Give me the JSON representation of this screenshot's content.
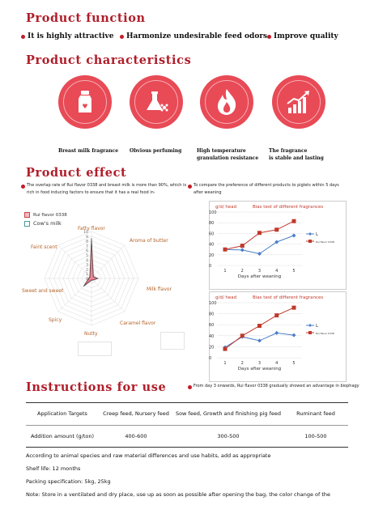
{
  "sections": {
    "function_title": "Product function",
    "characteristics_title": "Product characteristics",
    "effect_title": "Product effect",
    "instructions_title": "Instructions for use"
  },
  "functions": [
    "It is highly attractive",
    "Harmonize undesirable feed odors",
    "Improve quality"
  ],
  "characteristics": [
    {
      "icon": "milk-bottle-icon",
      "label": "Breast milk fragrance"
    },
    {
      "icon": "flask-flower-icon",
      "label": "Obvious perfuming"
    },
    {
      "icon": "flame-icon",
      "label": "High temperature\ngranulation resistance"
    },
    {
      "icon": "growth-chart-icon",
      "label": "The fragrance\nis stable and lasting"
    }
  ],
  "effect": {
    "left_text": "The overlap rate of Rui flavor 0338 and breast milk is more than 90%, which is rich in food inducing factors to ensure that it has a real food in-",
    "right_text": "To compare the preference of different products to piglets within 5 days after weaning",
    "bottom_right_text": "From day 3 onwards, Rui flavor 0338 gradually showed an advantage in biophagy"
  },
  "radar": {
    "legend": [
      "Rui flavor 0338",
      "Cow's milk"
    ],
    "axes": [
      "Fatty flavor",
      "Aroma of butter",
      "Milk flavor",
      "Caramel flavor",
      "Nutty",
      "Spicy",
      "Sweet and sweet",
      "Faint scent"
    ],
    "ticks": [
      "10",
      "9",
      "8",
      "7",
      "6",
      "5",
      "4",
      "3",
      "2",
      "1",
      "0"
    ],
    "colors": {
      "rui": "#e6899a",
      "cow": "#8fb7b9"
    }
  },
  "chart_data": [
    {
      "type": "line",
      "title": "Bias test of different fragrances",
      "ylabel": "g/d/ head",
      "xlabel": "Days after weaning",
      "x": [
        1,
        2,
        3,
        4,
        5
      ],
      "ylim": [
        0,
        100
      ],
      "yticks": [
        0,
        20,
        40,
        60,
        80,
        100
      ],
      "series": [
        {
          "name": "L",
          "color": "#4a7ec9",
          "values": [
            30,
            29,
            22,
            44,
            56
          ]
        },
        {
          "name": "Rui flavor 0338",
          "color": "#c0392b",
          "values": [
            30,
            37,
            61,
            67,
            83
          ]
        }
      ]
    },
    {
      "type": "line",
      "title": "Bias test of different fragrances",
      "ylabel": "g/d/ head",
      "xlabel": "Days after weaning",
      "x": [
        1,
        2,
        3,
        4,
        5
      ],
      "ylim": [
        0,
        100
      ],
      "yticks": [
        0,
        20,
        40,
        60,
        80,
        100
      ],
      "series": [
        {
          "name": "L",
          "color": "#4a7ec9",
          "values": [
            19,
            38,
            31,
            45,
            41
          ]
        },
        {
          "name": "Rui flavor 0338",
          "color": "#c0392b",
          "values": [
            16,
            40,
            58,
            77,
            91
          ]
        }
      ]
    }
  ],
  "table": {
    "headers": [
      "Application Targets",
      "Creep feed, Nursery feed",
      "Sow feed, Growth and finishing pig feed",
      "Ruminant feed"
    ],
    "row": [
      "Addition amount (g/ton)",
      "400-600",
      "300-500",
      "100-500"
    ]
  },
  "notes": [
    "According to animal species and raw material differences and use habits, add as appropriate",
    "Shelf life: 12 months",
    "Packing specification: 5kg, 25kg",
    "Note: Store in a ventilated and dry place, use up as soon as possible after opening the bag, the color change of the"
  ],
  "colors": {
    "accent": "#b01e2a",
    "icon_bg": "#e84a56",
    "bullet": "#c41c2a"
  }
}
